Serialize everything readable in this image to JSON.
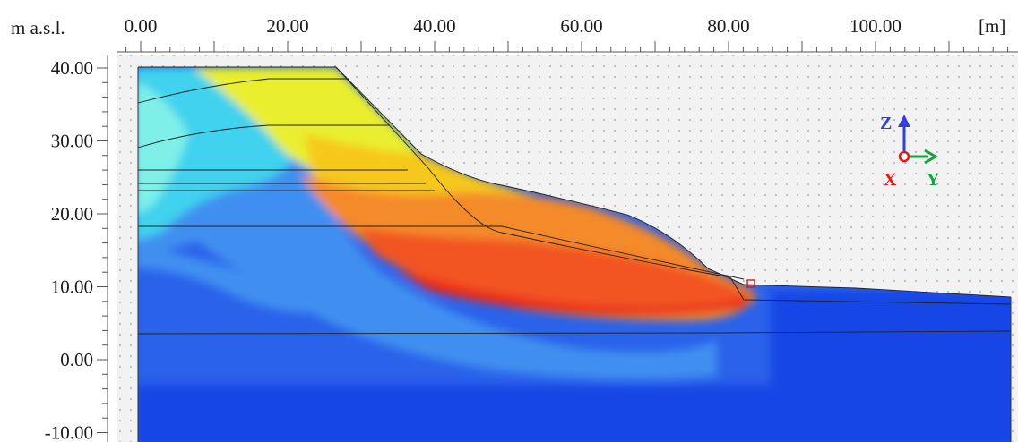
{
  "vertical_axis": {
    "unit_label": "m a.s.l.",
    "ticks": [
      {
        "value": 40,
        "label": "40.00"
      },
      {
        "value": 30,
        "label": "30.00"
      },
      {
        "value": 20,
        "label": "20.00"
      },
      {
        "value": 10,
        "label": "10.00"
      },
      {
        "value": 0,
        "label": "0.00"
      },
      {
        "value": -10,
        "label": "-10.00"
      }
    ]
  },
  "horizontal_axis": {
    "unit_label": "[m]",
    "ticks": [
      {
        "value": 0,
        "label": "0.00"
      },
      {
        "value": 20,
        "label": "20.00"
      },
      {
        "value": 40,
        "label": "40.00"
      },
      {
        "value": 60,
        "label": "60.00"
      },
      {
        "value": 80,
        "label": "80.00"
      },
      {
        "value": 100,
        "label": "100.00"
      }
    ]
  },
  "orientation_gizmo": {
    "z_label": "Z",
    "x_label": "X",
    "y_label": "Y",
    "z_color": "#3340d6",
    "x_color": "#e01818",
    "y_color": "#16a040"
  },
  "colors": {
    "canvas_bg": "#f2f2f2",
    "dot_grid": "#9a9a9a",
    "deep_blue": "#1747e6",
    "blue": "#2a62ea",
    "light_blue": "#3f8ff0",
    "cyan": "#3fd2ee",
    "aqua": "#7ff0e8",
    "yellow": "#e9ef2f",
    "yellow_orange": "#f6c81f",
    "orange": "#f48a2a",
    "red_orange": "#f25523",
    "red": "#ea2b1e"
  }
}
